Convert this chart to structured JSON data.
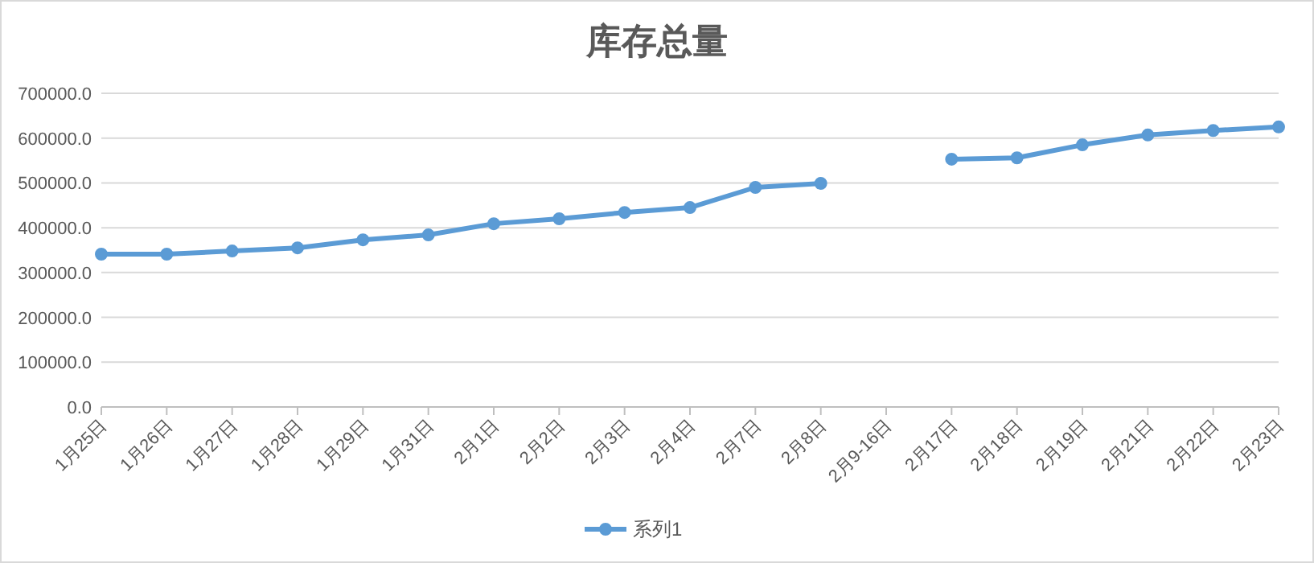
{
  "chart_data": {
    "type": "line",
    "title": "库存总量",
    "categories": [
      "1月25日",
      "1月26日",
      "1月27日",
      "1月28日",
      "1月29日",
      "1月31日",
      "2月1日",
      "2月2日",
      "2月3日",
      "2月4日",
      "2月7日",
      "2月8日",
      "2月9-16日",
      "2月17日",
      "2月18日",
      "2月19日",
      "2月21日",
      "2月22日",
      "2月23日"
    ],
    "series": [
      {
        "name": "系列1",
        "color": "#5b9bd5",
        "values": [
          341000,
          341000,
          348000,
          355000,
          373000,
          384000,
          409000,
          420000,
          434000,
          445000,
          490000,
          499000,
          null,
          553000,
          556000,
          585000,
          607000,
          617000,
          625000
        ]
      }
    ],
    "ylim": [
      0,
      700000
    ],
    "yticks": [
      {
        "value": 0,
        "label": "0.0"
      },
      {
        "value": 100000,
        "label": "100000.0"
      },
      {
        "value": 200000,
        "label": "200000.0"
      },
      {
        "value": 300000,
        "label": "300000.0"
      },
      {
        "value": 400000,
        "label": "400000.0"
      },
      {
        "value": 500000,
        "label": "500000.0"
      },
      {
        "value": 600000,
        "label": "600000.0"
      },
      {
        "value": 700000,
        "label": "700000.0"
      }
    ],
    "grid": "y",
    "legend": "bottom",
    "marker": "circle",
    "line_style": "solid"
  }
}
